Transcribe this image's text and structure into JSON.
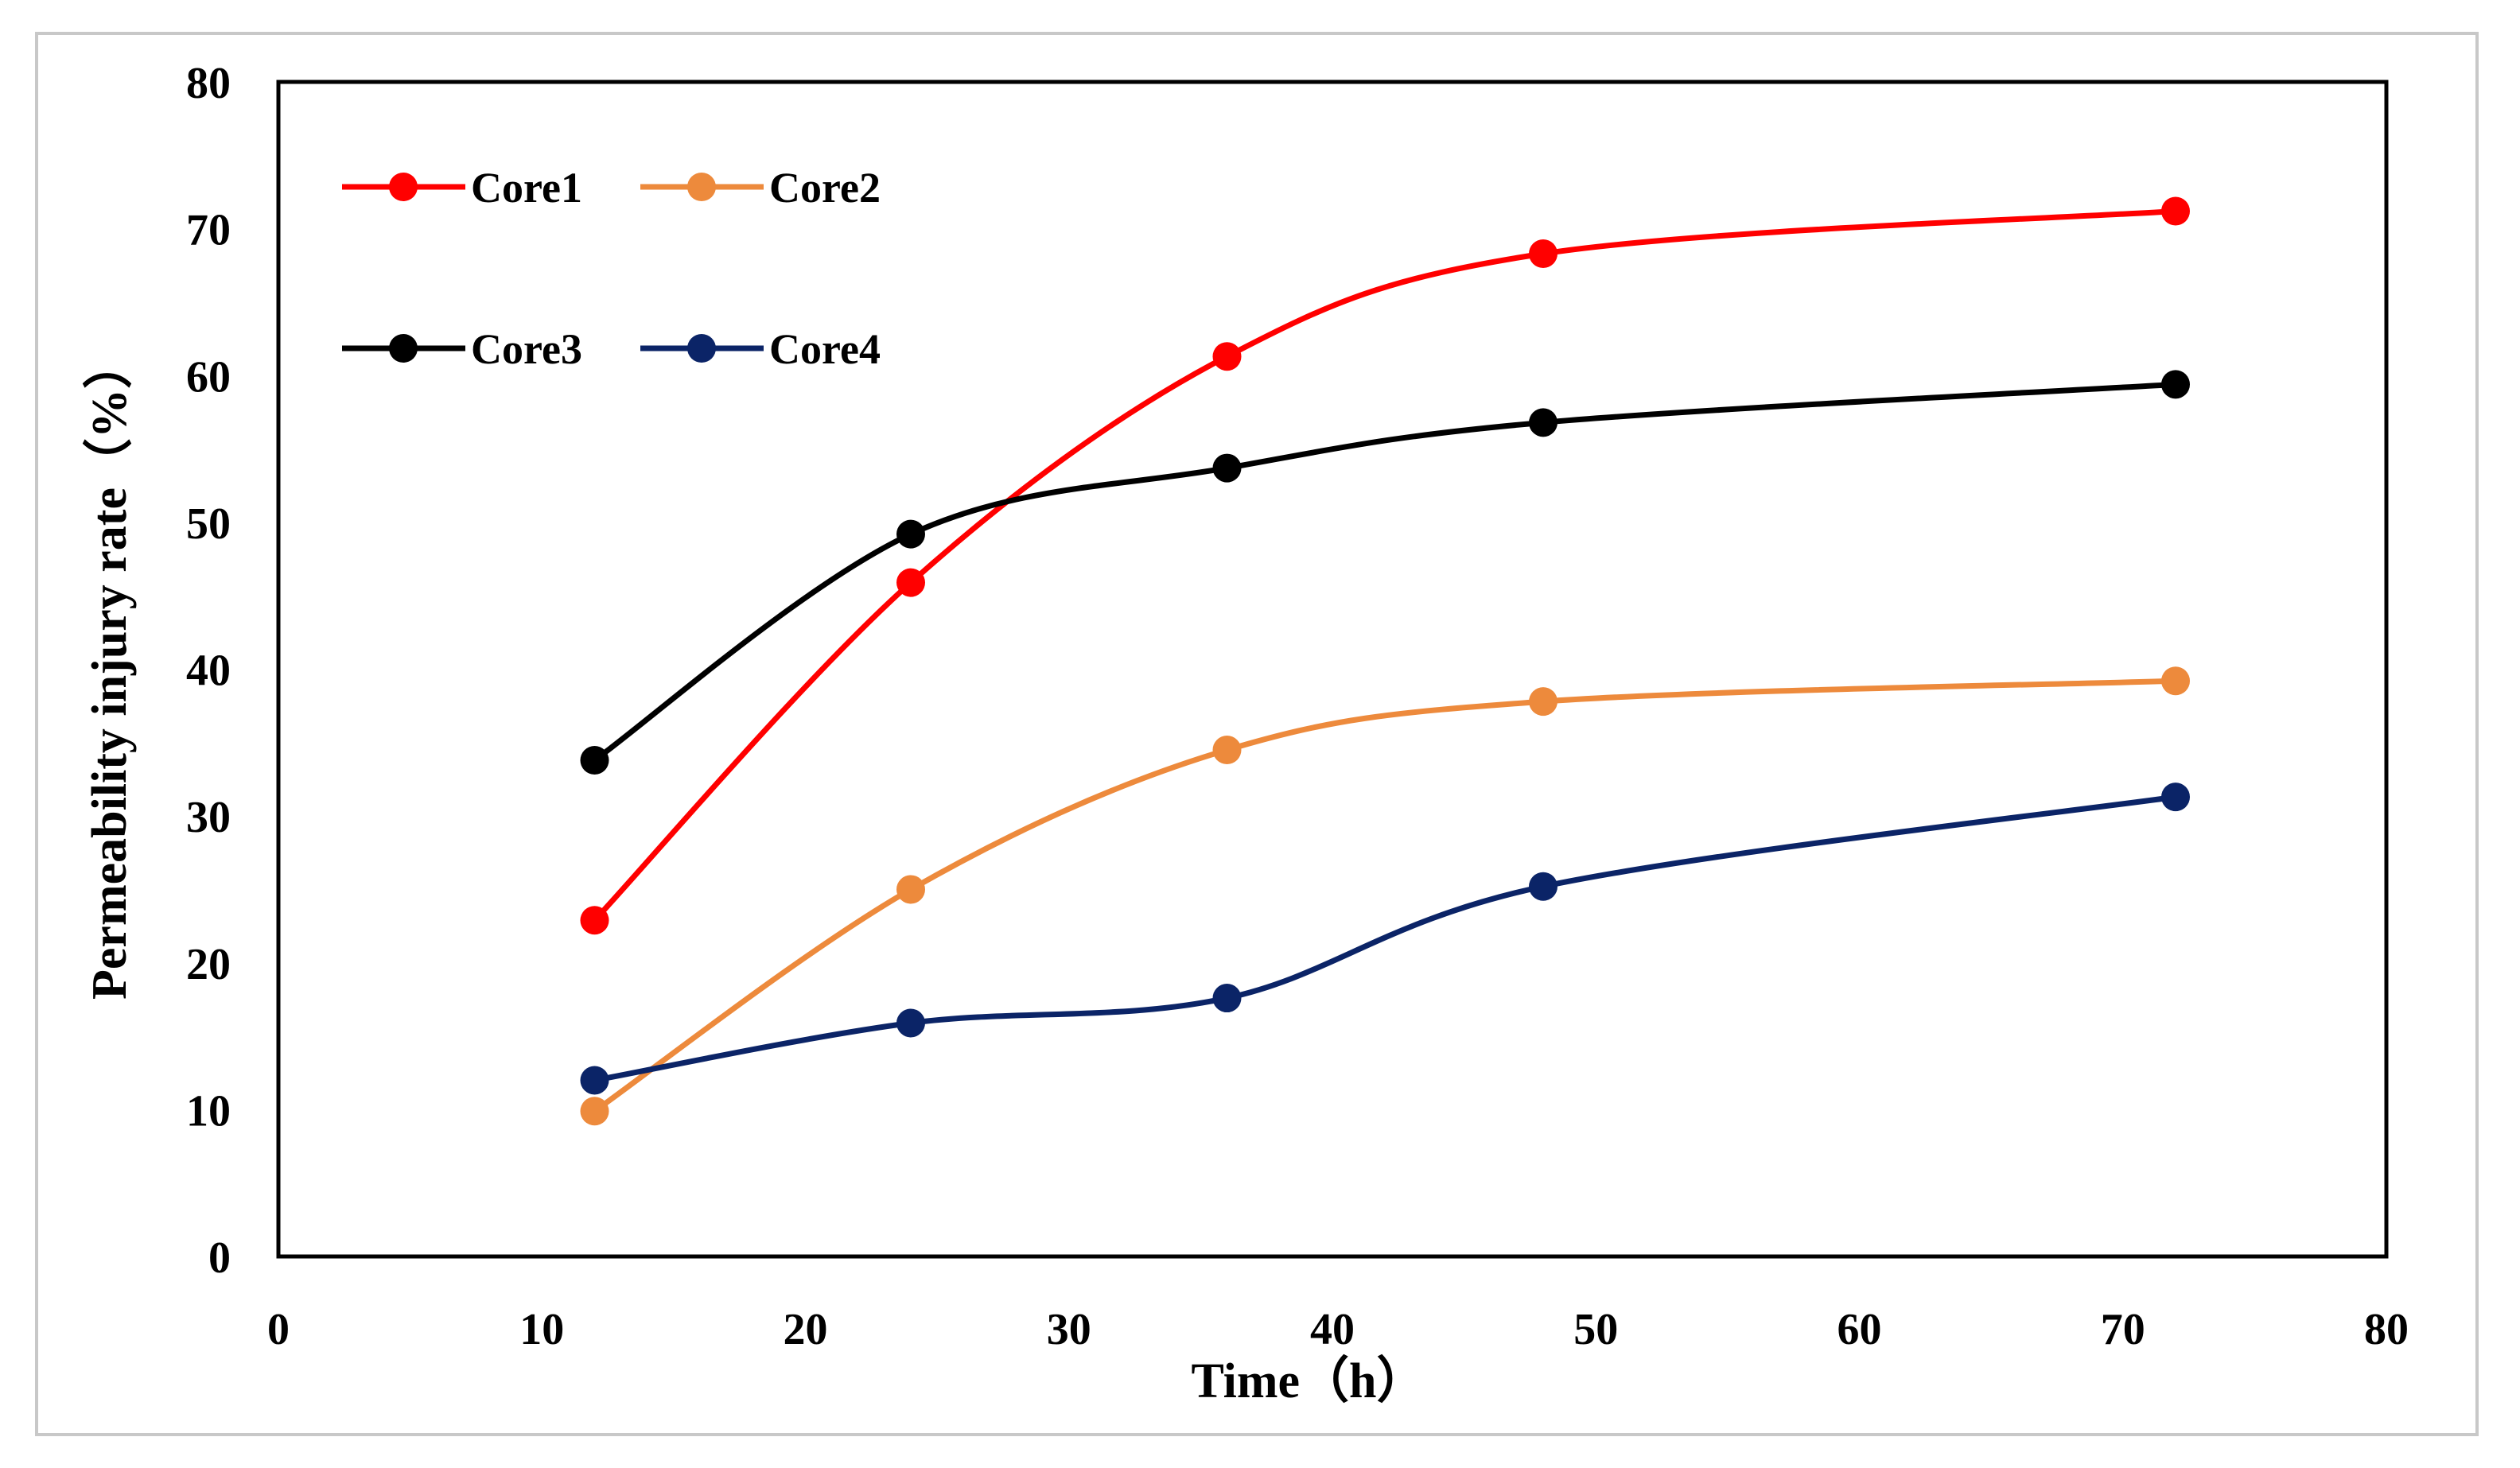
{
  "chart_data": {
    "type": "line",
    "smooth": true,
    "title": "",
    "xlabel": "Time（h）",
    "ylabel": "Permeability injury rate（%）",
    "xlim": [
      0,
      80
    ],
    "ylim": [
      0,
      80
    ],
    "xticks": [
      0,
      10,
      20,
      30,
      40,
      50,
      60,
      70,
      80
    ],
    "yticks": [
      0,
      10,
      20,
      30,
      40,
      50,
      60,
      70,
      80
    ],
    "grid": false,
    "legend_position": "top-left",
    "x": [
      12,
      24,
      36,
      48,
      72
    ],
    "series": [
      {
        "name": "Core1",
        "color": "#ff0000",
        "values": [
          22.9,
          45.9,
          61.3,
          68.3,
          71.2
        ]
      },
      {
        "name": "Core2",
        "color": "#ed8a3c",
        "values": [
          9.9,
          25.0,
          34.5,
          37.8,
          39.2
        ]
      },
      {
        "name": "Core3",
        "color": "#000000",
        "values": [
          33.8,
          49.2,
          53.7,
          56.8,
          59.4
        ]
      },
      {
        "name": "Core4",
        "color": "#0b2467",
        "values": [
          12.0,
          15.9,
          17.6,
          25.2,
          31.3
        ]
      }
    ]
  }
}
